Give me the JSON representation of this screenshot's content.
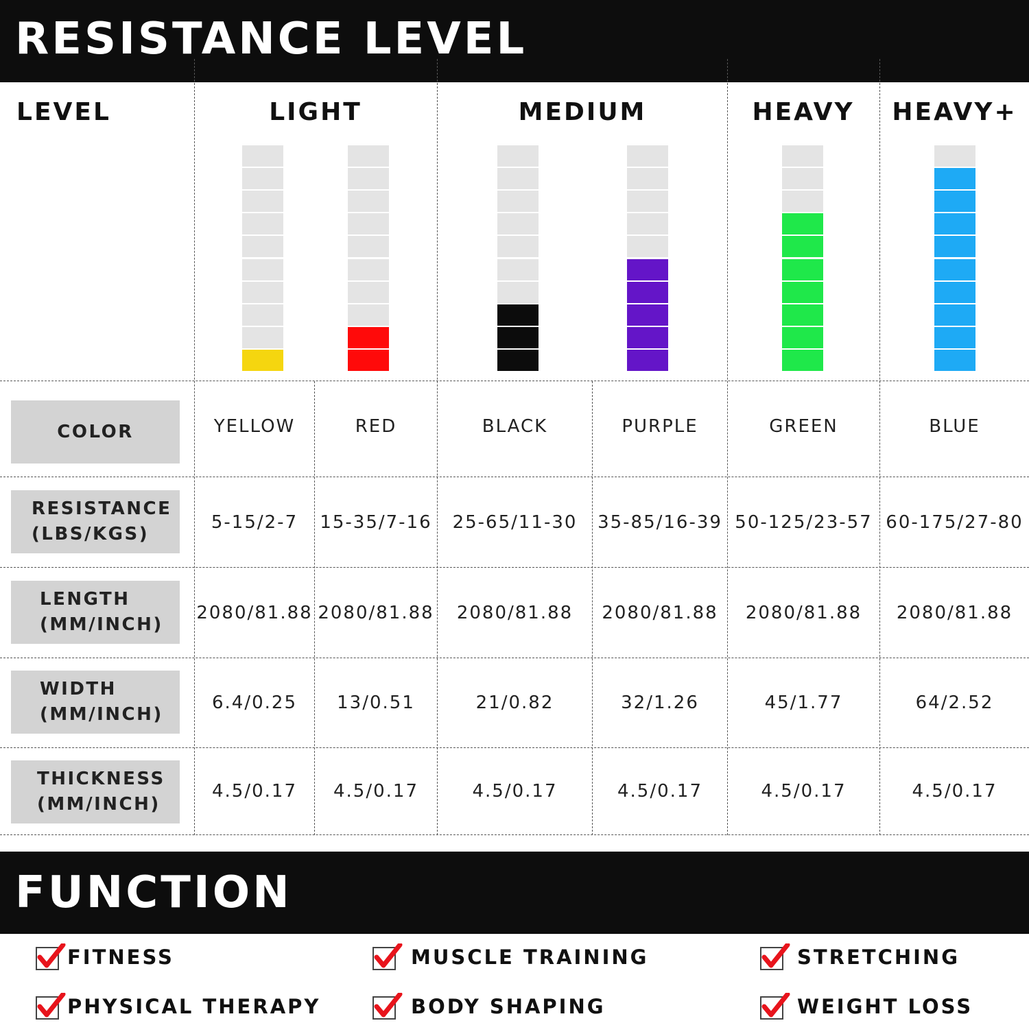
{
  "header": {
    "title": "RESISTANCE LEVEL"
  },
  "level_label": "LEVEL",
  "groups": [
    "LIGHT",
    "MEDIUM",
    "HEAVY",
    "HEAVY+"
  ],
  "bands": [
    {
      "color_name": "YELLOW",
      "hex": "#f5d60f",
      "level": 1,
      "resistance": "5-15/2-7",
      "length": "2080/81.88",
      "width": "6.4/0.25",
      "thickness": "4.5/0.17"
    },
    {
      "color_name": "RED",
      "hex": "#ff0a0a",
      "level": 2,
      "resistance": "15-35/7-16",
      "length": "2080/81.88",
      "width": "13/0.51",
      "thickness": "4.5/0.17"
    },
    {
      "color_name": "BLACK",
      "hex": "#0c0c0c",
      "level": 3,
      "resistance": "25-65/11-30",
      "length": "2080/81.88",
      "width": "21/0.82",
      "thickness": "4.5/0.17"
    },
    {
      "color_name": "PURPLE",
      "hex": "#6415c8",
      "level": 5,
      "resistance": "35-85/16-39",
      "length": "2080/81.88",
      "width": "32/1.26",
      "thickness": "4.5/0.17"
    },
    {
      "color_name": "GREEN",
      "hex": "#1fe84a",
      "level": 7,
      "resistance": "50-125/23-57",
      "length": "2080/81.88",
      "width": "45/1.77",
      "thickness": "4.5/0.17"
    },
    {
      "color_name": "BLUE",
      "hex": "#1eaaf5",
      "level": 9,
      "resistance": "60-175/27-80",
      "length": "2080/81.88",
      "width": "64/2.52",
      "thickness": "4.5/0.17"
    }
  ],
  "bar_segments": 10,
  "bar_empty_color": "#e4e4e4",
  "row_labels": {
    "color": [
      "COLOR"
    ],
    "resistance": [
      "RESISTANCE",
      "(LBS/KGS)"
    ],
    "length": [
      "LENGTH",
      "(MM/INCH)"
    ],
    "width": [
      "WIDTH",
      "(MM/INCH)"
    ],
    "thickness": [
      "THICKNESS",
      "(MM/INCH)"
    ]
  },
  "function": {
    "title": "FUNCTION",
    "items": [
      "FITNESS",
      "MUSCLE TRAINING",
      "STRETCHING",
      "PHYSICAL THERAPY",
      "BODY SHAPING",
      "WEIGHT LOSS"
    ],
    "check_color": "#e8141c"
  }
}
